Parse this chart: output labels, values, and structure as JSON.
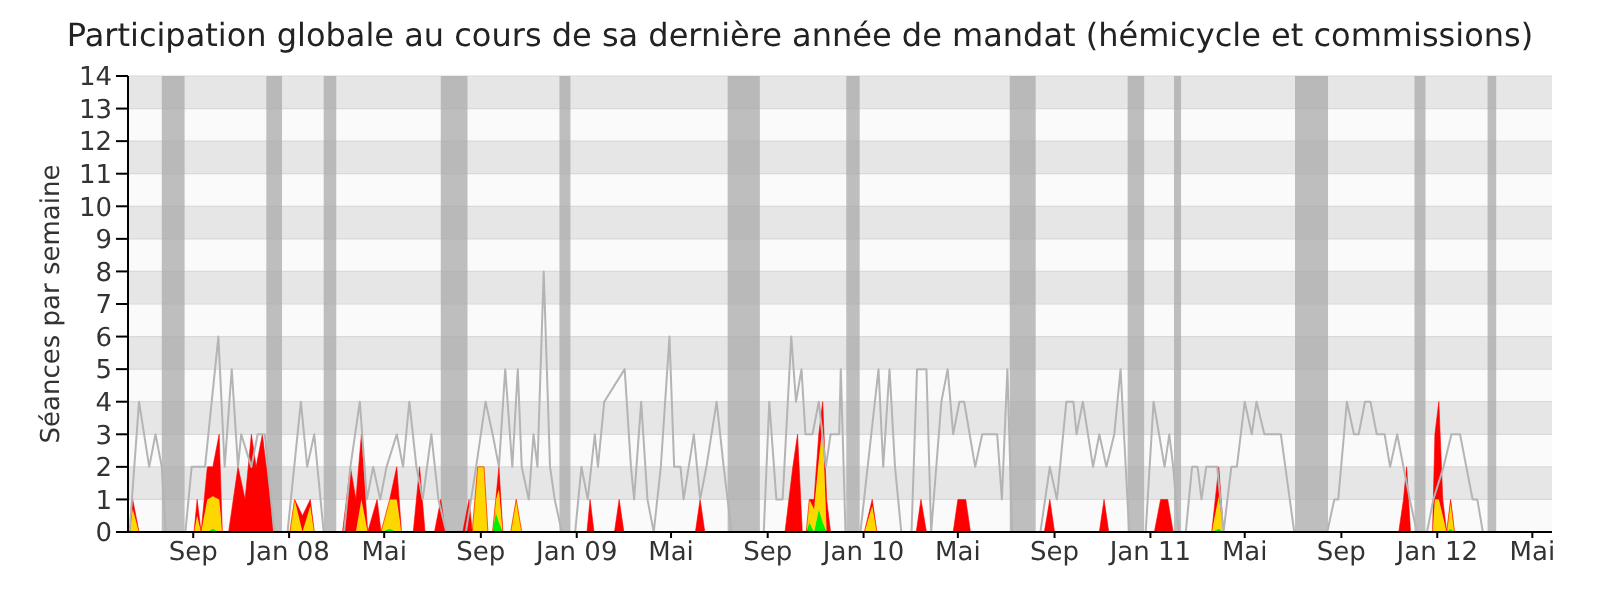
{
  "chart_data": {
    "type": "area",
    "title": "Participation globale au cours de sa dernière année de mandat (hémicycle et commissions)",
    "ylabel": "Séances par semaine",
    "stacked": true,
    "grid": "y",
    "xlim": [
      "2007-06-10",
      "2012-05-26"
    ],
    "xticks": [
      {
        "value": "2007-09-01",
        "label": "Sep"
      },
      {
        "value": "2008-01-01",
        "label": "Jan 08"
      },
      {
        "value": "2008-05-01",
        "label": "Mai"
      },
      {
        "value": "2008-09-01",
        "label": "Sep"
      },
      {
        "value": "2009-01-01",
        "label": "Jan 09"
      },
      {
        "value": "2009-05-01",
        "label": "Mai"
      },
      {
        "value": "2009-09-01",
        "label": "Sep"
      },
      {
        "value": "2010-01-01",
        "label": "Jan 10"
      },
      {
        "value": "2010-05-01",
        "label": "Mai"
      },
      {
        "value": "2010-09-01",
        "label": "Sep"
      },
      {
        "value": "2011-01-01",
        "label": "Jan 11"
      },
      {
        "value": "2011-05-01",
        "label": "Mai"
      },
      {
        "value": "2011-09-01",
        "label": "Sep"
      },
      {
        "value": "2012-01-01",
        "label": "Jan 12"
      },
      {
        "value": "2012-05-01",
        "label": "Mai"
      }
    ],
    "ylim": [
      0,
      14
    ],
    "yticks": [
      0,
      1,
      2,
      3,
      4,
      5,
      6,
      7,
      8,
      9,
      10,
      11,
      12,
      13,
      14
    ],
    "x": [
      "2007-06-12",
      "2007-06-16",
      "2007-06-24",
      "2007-09-02",
      "2007-09-06",
      "2007-09-11",
      "2007-09-19",
      "2007-09-26",
      "2007-10-04",
      "2007-10-08",
      "2007-10-16",
      "2007-10-28",
      "2007-11-06",
      "2007-11-14",
      "2007-11-20",
      "2007-11-28",
      "2007-12-13",
      "2008-01-02",
      "2008-01-08",
      "2008-01-18",
      "2008-01-28",
      "2008-02-02",
      "2008-03-09",
      "2008-03-19",
      "2008-03-26",
      "2008-04-02",
      "2008-04-10",
      "2008-04-22",
      "2008-04-27",
      "2008-05-08",
      "2008-05-17",
      "2008-05-23",
      "2008-06-07",
      "2008-06-15",
      "2008-06-22",
      "2008-07-04",
      "2008-07-12",
      "2008-07-18",
      "2008-08-09",
      "2008-08-17",
      "2008-08-21",
      "2008-08-28",
      "2008-09-05",
      "2008-09-10",
      "2008-09-16",
      "2008-09-20",
      "2008-09-24",
      "2008-09-29",
      "2008-10-09",
      "2008-10-16",
      "2008-10-23",
      "2009-01-14",
      "2009-01-18",
      "2009-01-23",
      "2009-02-18",
      "2009-02-24",
      "2009-03-02",
      "2009-06-01",
      "2009-06-07",
      "2009-06-13",
      "2009-09-23",
      "2009-10-03",
      "2009-10-09",
      "2009-10-15",
      "2009-10-20",
      "2009-10-24",
      "2009-10-30",
      "2009-11-05",
      "2009-11-10",
      "2009-11-15",
      "2009-11-20",
      "2010-01-02",
      "2010-01-12",
      "2010-01-18",
      "2010-03-09",
      "2010-03-15",
      "2010-03-22",
      "2010-04-25",
      "2010-05-01",
      "2010-05-11",
      "2010-05-17",
      "2010-08-19",
      "2010-08-26",
      "2010-09-01",
      "2010-10-28",
      "2010-11-03",
      "2010-11-09",
      "2011-01-06",
      "2011-01-14",
      "2011-01-23",
      "2011-01-30",
      "2011-03-20",
      "2011-03-29",
      "2011-04-04",
      "2011-11-13",
      "2011-11-19",
      "2011-11-23",
      "2011-11-28",
      "2011-12-26",
      "2011-12-29",
      "2012-01-03",
      "2012-01-08",
      "2012-01-13",
      "2012-01-18",
      "2012-01-23"
    ],
    "series": [
      {
        "color": "#00ee00",
        "values": [
          0,
          0,
          0,
          0,
          0,
          0,
          0,
          0.1,
          0,
          0,
          0,
          0,
          0,
          0,
          0,
          0,
          0,
          0,
          0,
          0,
          0,
          0,
          0,
          0,
          0,
          0,
          0,
          0,
          0,
          0.1,
          0,
          0,
          0,
          0,
          0,
          0,
          0,
          0,
          0,
          0,
          0,
          0,
          0,
          0,
          0,
          0.6,
          0.3,
          0,
          0,
          0,
          0,
          0,
          0,
          0,
          0,
          0,
          0,
          0,
          0,
          0,
          0,
          0,
          0,
          0,
          0,
          0.3,
          0,
          0.7,
          0.3,
          0,
          0,
          0,
          0,
          0,
          0,
          0,
          0,
          0,
          0,
          0,
          0,
          0,
          0,
          0,
          0,
          0,
          0,
          0,
          0,
          0,
          0,
          0,
          0.1,
          0,
          0,
          0,
          0,
          0,
          0,
          0,
          0,
          0,
          0,
          0.1,
          0
        ]
      },
      {
        "color": "#ffd700",
        "values": [
          0,
          0.7,
          0,
          0,
          0.5,
          0,
          1,
          1,
          1,
          0,
          0,
          0,
          0,
          0,
          0,
          0,
          0,
          0,
          1,
          0,
          0.8,
          0,
          0,
          0,
          0,
          1,
          0,
          0,
          0,
          0.9,
          1,
          0,
          0,
          0,
          0,
          0,
          0,
          0,
          0,
          0,
          0,
          2,
          2,
          0,
          0,
          0.4,
          1,
          0,
          0,
          1,
          0,
          0,
          0,
          0,
          0,
          0,
          0,
          0,
          0,
          0,
          0,
          0,
          0,
          0,
          0,
          0.7,
          0.7,
          1.5,
          3,
          0,
          0,
          0,
          0.8,
          0,
          0,
          0,
          0,
          0,
          0,
          0,
          0,
          0,
          0,
          0,
          0,
          0,
          0,
          0,
          0,
          0,
          0,
          0,
          1,
          0,
          0,
          0,
          0,
          0,
          0,
          1,
          1,
          0.5,
          0,
          0.8,
          0
        ]
      },
      {
        "color": "#ff0000",
        "values": [
          0,
          0.3,
          0,
          0,
          0.5,
          0,
          1,
          0.9,
          2,
          0,
          0,
          2,
          1,
          3,
          2,
          3,
          0,
          0,
          0,
          0.5,
          0.2,
          0,
          0,
          2,
          1,
          2,
          0,
          1,
          0,
          0,
          1,
          0,
          0,
          2,
          0,
          0,
          1,
          0,
          0,
          1,
          0,
          0,
          0,
          0,
          0,
          0,
          0.7,
          0,
          0,
          0,
          0,
          0,
          1,
          0,
          0,
          1,
          0,
          0,
          1,
          0,
          0,
          2,
          3,
          0,
          0,
          0,
          0.3,
          0.8,
          0.7,
          1,
          0,
          0,
          0.2,
          0,
          0,
          1,
          0,
          0,
          1,
          1,
          0,
          0,
          1,
          0,
          0,
          1,
          0,
          0,
          1,
          1,
          0,
          0,
          0.9,
          0,
          0,
          1,
          2,
          0,
          0,
          2,
          3,
          0.5,
          0,
          0.1,
          0
        ]
      },
      {
        "type": "line",
        "color": "#b4b4b4",
        "x": [
          "2007-06-12",
          "2007-06-24",
          "2007-07-07",
          "2007-07-15",
          "2007-07-23",
          "2007-07-28",
          "2007-08-22",
          "2007-08-30",
          "2007-09-16",
          "2007-10-03",
          "2007-10-11",
          "2007-10-20",
          "2007-10-28",
          "2007-11-01",
          "2007-11-14",
          "2007-11-22",
          "2007-12-01",
          "2007-12-13",
          "2007-12-30",
          "2008-01-16",
          "2008-01-24",
          "2008-02-02",
          "2008-02-06",
          "2008-02-14",
          "2008-03-11",
          "2008-03-19",
          "2008-03-31",
          "2008-04-09",
          "2008-04-17",
          "2008-04-26",
          "2008-05-04",
          "2008-05-17",
          "2008-05-25",
          "2008-06-02",
          "2008-06-11",
          "2008-06-19",
          "2008-06-30",
          "2008-07-09",
          "2008-07-19",
          "2008-08-13",
          "2008-08-26",
          "2008-09-07",
          "2008-09-16",
          "2008-09-24",
          "2008-10-02",
          "2008-10-11",
          "2008-10-18",
          "2008-10-23",
          "2008-11-01",
          "2008-11-07",
          "2008-11-12",
          "2008-11-20",
          "2008-11-28",
          "2008-12-04",
          "2008-12-13",
          "2008-12-30",
          "2009-01-07",
          "2009-01-15",
          "2009-01-24",
          "2009-01-28",
          "2009-02-05",
          "2009-03-03",
          "2009-03-11",
          "2009-03-15",
          "2009-03-24",
          "2009-04-01",
          "2009-04-09",
          "2009-04-18",
          "2009-04-29",
          "2009-05-05",
          "2009-05-13",
          "2009-05-17",
          "2009-05-30",
          "2009-06-07",
          "2009-06-15",
          "2009-06-28",
          "2009-07-07",
          "2009-07-17",
          "2009-08-27",
          "2009-09-03",
          "2009-09-12",
          "2009-09-20",
          "2009-10-01",
          "2009-10-07",
          "2009-10-14",
          "2009-10-19",
          "2009-10-28",
          "2009-11-05",
          "2009-11-14",
          "2009-11-20",
          "2009-12-01",
          "2009-12-03",
          "2009-12-09",
          "2009-12-28",
          "2010-01-20",
          "2010-01-26",
          "2010-02-03",
          "2010-02-10",
          "2010-02-18",
          "2010-03-03",
          "2010-03-10",
          "2010-03-22",
          "2010-03-28",
          "2010-04-10",
          "2010-04-18",
          "2010-04-25",
          "2010-05-03",
          "2010-05-09",
          "2010-05-23",
          "2010-06-01",
          "2010-06-20",
          "2010-06-26",
          "2010-07-03",
          "2010-07-09",
          "2010-08-14",
          "2010-08-26",
          "2010-09-04",
          "2010-09-16",
          "2010-09-25",
          "2010-09-29",
          "2010-10-07",
          "2010-10-20",
          "2010-10-28",
          "2010-11-06",
          "2010-11-16",
          "2010-11-24",
          "2010-12-05",
          "2010-12-26",
          "2011-01-05",
          "2011-01-12",
          "2011-01-19",
          "2011-01-25",
          "2011-01-30",
          "2011-02-06",
          "2011-02-15",
          "2011-02-23",
          "2011-03-02",
          "2011-03-07",
          "2011-03-13",
          "2011-03-27",
          "2011-04-04",
          "2011-04-14",
          "2011-04-21",
          "2011-05-01",
          "2011-05-10",
          "2011-05-16",
          "2011-05-26",
          "2011-06-16",
          "2011-07-03",
          "2011-08-14",
          "2011-08-23",
          "2011-08-28",
          "2011-09-08",
          "2011-09-17",
          "2011-09-23",
          "2011-10-01",
          "2011-10-08",
          "2011-10-16",
          "2011-10-26",
          "2011-11-02",
          "2011-11-11",
          "2011-11-19",
          "2011-11-27",
          "2011-12-06",
          "2011-12-19",
          "2011-12-27",
          "2012-01-09",
          "2012-01-19",
          "2012-01-30",
          "2012-02-07",
          "2012-02-15",
          "2012-02-21",
          "2012-02-28"
        ],
        "values": [
          0,
          4,
          2,
          3,
          2,
          0,
          0,
          2,
          2,
          6,
          2,
          5,
          2,
          3,
          2,
          3,
          3,
          0,
          0,
          4,
          2,
          3,
          2,
          0,
          0,
          2,
          4,
          1,
          2,
          1,
          2,
          3,
          2,
          4,
          2,
          1,
          3,
          1,
          0,
          0,
          2,
          4,
          3,
          2,
          5,
          2,
          5,
          2,
          1,
          3,
          2,
          8,
          2,
          1,
          0,
          0,
          2,
          1,
          3,
          2,
          4,
          5,
          2,
          1,
          4,
          1,
          0,
          2,
          6,
          2,
          2,
          1,
          3,
          1,
          2,
          4,
          2,
          0,
          0,
          4,
          1,
          1,
          6,
          4,
          5,
          3,
          3,
          4,
          2,
          3,
          3,
          5,
          0,
          0,
          5,
          2,
          5,
          2,
          0,
          0,
          5,
          5,
          0,
          4,
          5,
          3,
          4,
          4,
          2,
          3,
          3,
          1,
          5,
          0,
          0,
          2,
          1,
          4,
          4,
          3,
          4,
          2,
          3,
          2,
          3,
          5,
          0,
          0,
          4,
          3,
          2,
          3,
          2,
          0,
          0,
          2,
          2,
          1,
          2,
          2,
          0,
          2,
          2,
          4,
          3,
          4,
          3,
          3,
          0,
          0,
          1,
          1,
          4,
          3,
          3,
          4,
          4,
          3,
          3,
          2,
          3,
          2,
          1,
          0,
          0,
          1,
          2,
          3,
          3,
          2,
          1,
          1,
          0
        ]
      }
    ],
    "bands": [
      {
        "axis": "x",
        "from": "2007-07-23",
        "to": "2007-08-21",
        "color": "#aaaaaa"
      },
      {
        "axis": "x",
        "from": "2007-12-03",
        "to": "2007-12-23",
        "color": "#aaaaaa"
      },
      {
        "axis": "x",
        "from": "2008-02-14",
        "to": "2008-03-01",
        "color": "#aaaaaa"
      },
      {
        "axis": "x",
        "from": "2008-07-12",
        "to": "2008-08-15",
        "color": "#aaaaaa"
      },
      {
        "axis": "x",
        "from": "2008-12-10",
        "to": "2008-12-24",
        "color": "#aaaaaa"
      },
      {
        "axis": "x",
        "from": "2009-07-12",
        "to": "2009-08-22",
        "color": "#aaaaaa"
      },
      {
        "axis": "x",
        "from": "2009-12-10",
        "to": "2009-12-27",
        "color": "#aaaaaa"
      },
      {
        "axis": "x",
        "from": "2010-07-06",
        "to": "2010-08-08",
        "color": "#aaaaaa"
      },
      {
        "axis": "x",
        "from": "2010-12-03",
        "to": "2010-12-24",
        "color": "#aaaaaa"
      },
      {
        "axis": "x",
        "from": "2011-01-31",
        "to": "2011-02-09",
        "color": "#aaaaaa"
      },
      {
        "axis": "x",
        "from": "2011-07-04",
        "to": "2011-08-15",
        "color": "#aaaaaa"
      },
      {
        "axis": "x",
        "from": "2011-12-03",
        "to": "2011-12-17",
        "color": "#aaaaaa"
      },
      {
        "axis": "x",
        "from": "2012-03-05",
        "to": "2012-03-16",
        "color": "#aaaaaa"
      }
    ]
  }
}
